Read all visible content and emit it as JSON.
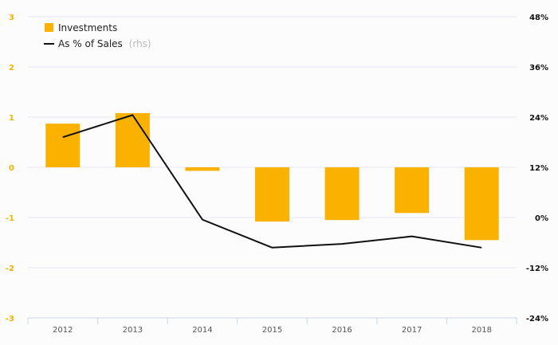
{
  "chart_data": {
    "type": "bar",
    "categories": [
      "2012",
      "2013",
      "2014",
      "2015",
      "2016",
      "2017",
      "2018"
    ],
    "series": [
      {
        "name": "Investments",
        "type": "bar",
        "axis": "left",
        "color": "#fbb100",
        "values": [
          0.87,
          1.08,
          -0.07,
          -1.08,
          -1.05,
          -0.91,
          -1.45
        ]
      },
      {
        "name": "As % of Sales",
        "name_suffix": "(rhs)",
        "type": "line",
        "axis": "right",
        "color": "#111111",
        "values": [
          19.2,
          24.5,
          -0.5,
          -7.2,
          -6.3,
          -4.5,
          -7.2
        ]
      }
    ],
    "y_left": {
      "ylim": [
        -3,
        3
      ],
      "ticks": [
        "3",
        "2",
        "1",
        "0",
        "-1",
        "-2",
        "-3"
      ]
    },
    "y_right": {
      "ylim": [
        -24,
        48
      ],
      "ticks": [
        "48%",
        "36%",
        "24%",
        "12%",
        "0%",
        "-12%",
        "-24%"
      ]
    },
    "grid": true,
    "legend": "top-left",
    "title": "",
    "xlabel": "",
    "ylabel": ""
  }
}
